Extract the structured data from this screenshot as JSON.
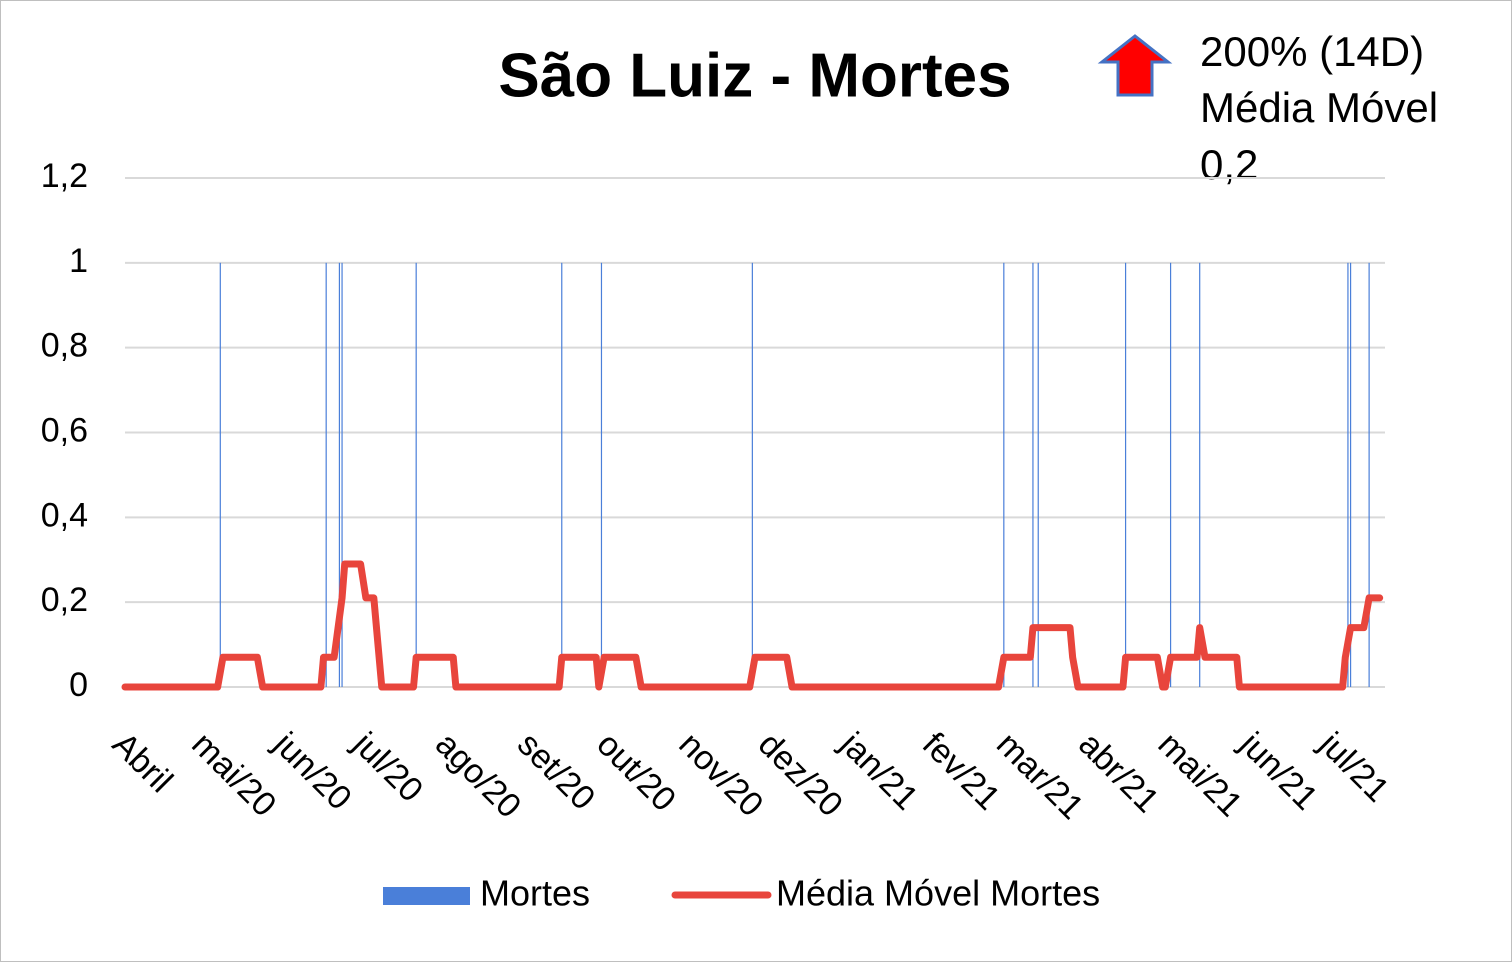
{
  "chart_data": {
    "type": "bar",
    "title": "São Luiz - Mortes",
    "annotation": [
      "200% (14D)",
      "Média Móvel",
      "0,2"
    ],
    "xlim": [
      0,
      476
    ],
    "xticks": [
      {
        "value": 0,
        "label": "Abril"
      },
      {
        "value": 30,
        "label": "mai/20"
      },
      {
        "value": 61,
        "label": "jun/20"
      },
      {
        "value": 91,
        "label": "jul/20"
      },
      {
        "value": 122,
        "label": "ago/20"
      },
      {
        "value": 153,
        "label": "set/20"
      },
      {
        "value": 183,
        "label": "out/20"
      },
      {
        "value": 214,
        "label": "nov/20"
      },
      {
        "value": 244,
        "label": "dez/20"
      },
      {
        "value": 275,
        "label": "jan/21"
      },
      {
        "value": 306,
        "label": "fev/21"
      },
      {
        "value": 334,
        "label": "mar/21"
      },
      {
        "value": 365,
        "label": "abr/21"
      },
      {
        "value": 395,
        "label": "mai/21"
      },
      {
        "value": 426,
        "label": "jun/21"
      },
      {
        "value": 456,
        "label": "jul/21"
      }
    ],
    "ylim": [
      0,
      1.2
    ],
    "yticks": [
      0,
      {
        "value": 0.2,
        "label": "0,2"
      },
      {
        "value": 0.4,
        "label": "0,4"
      },
      {
        "value": 0.6,
        "label": "0,6"
      },
      {
        "value": 0.8,
        "label": "0,8"
      },
      1,
      {
        "value": 1.2,
        "label": "1,2"
      }
    ],
    "grid": true,
    "series": [
      {
        "name": "Mortes",
        "type": "bar",
        "color": "#4a7fd9",
        "x": [
          36,
          76,
          81,
          82,
          110,
          165,
          180,
          237,
          332,
          343,
          345,
          378,
          395,
          406,
          462,
          463,
          470
        ],
        "values": [
          1,
          1,
          1,
          1,
          1,
          1,
          1,
          1,
          1,
          1,
          1,
          1,
          1,
          1,
          1,
          1,
          1
        ]
      },
      {
        "name": "Média Móvel Mortes",
        "type": "line",
        "color": "#e8453c",
        "x": [
          0,
          35,
          37,
          50,
          52,
          74,
          75,
          79,
          82,
          83,
          89,
          91,
          94,
          97,
          109,
          110,
          124,
          125,
          164,
          165,
          178,
          179,
          181,
          193,
          195,
          236,
          238,
          250,
          252,
          330,
          332,
          342,
          343,
          357,
          358,
          360,
          377,
          378,
          390,
          392,
          393,
          395,
          405,
          406,
          408,
          420,
          421,
          460,
          461,
          463,
          468,
          470,
          474
        ],
        "values": [
          0,
          0,
          0.07,
          0.07,
          0,
          0,
          0.07,
          0.07,
          0.21,
          0.29,
          0.29,
          0.21,
          0.21,
          0,
          0,
          0.07,
          0.07,
          0,
          0,
          0.07,
          0.07,
          0,
          0.07,
          0.07,
          0,
          0,
          0.07,
          0.07,
          0,
          0,
          0.07,
          0.07,
          0.14,
          0.14,
          0.07,
          0,
          0,
          0.07,
          0.07,
          0,
          0,
          0.07,
          0.07,
          0.14,
          0.07,
          0.07,
          0,
          0,
          0.07,
          0.14,
          0.14,
          0.21,
          0.21
        ]
      }
    ]
  }
}
